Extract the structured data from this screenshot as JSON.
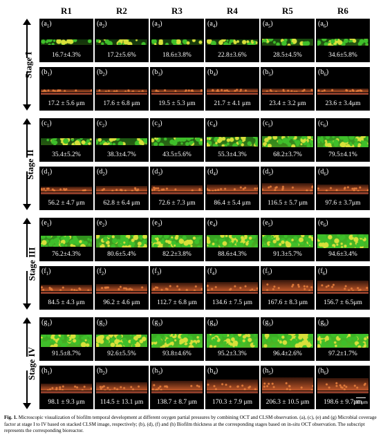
{
  "columns": [
    "R1",
    "R2",
    "R3",
    "R4",
    "R5",
    "R6"
  ],
  "stages": [
    {
      "label": "Stage I",
      "rows": [
        {
          "letter": "a",
          "kind": "clsm",
          "values": [
            "16.7±4.3%",
            "17.2±5.6%",
            "18.6±3.8%",
            "22.8±3.6%",
            "28.5±4.5%",
            "34.6±5.8%"
          ]
        },
        {
          "letter": "b",
          "kind": "oct",
          "values": [
            "17.2 ± 5.6 μm",
            "17.6 ± 6.8 μm",
            "19.5 ± 5.3 μm",
            "21.7 ± 4.1 μm",
            "23.4 ± 3.2 μm",
            "23.6 ± 3.4μm"
          ]
        }
      ]
    },
    {
      "label": "Stage II",
      "rows": [
        {
          "letter": "c",
          "kind": "clsm",
          "values": [
            "35.4±5.2%",
            "38.3±4.7%",
            "43.5±5.6%",
            "55.3±4.3%",
            "68.2±3.7%",
            "79.5±4.1%"
          ]
        },
        {
          "letter": "d",
          "kind": "oct",
          "values": [
            "56.2 ± 4.7 μm",
            "62.8 ± 6.4 μm",
            "72.6 ± 7.3 μm",
            "86.4 ± 5.4 μm",
            "116.5 ± 5.7 μm",
            "97.6 ± 3.7μm"
          ]
        }
      ]
    },
    {
      "label": "Stage III",
      "rows": [
        {
          "letter": "e",
          "kind": "clsm",
          "values": [
            "76.2±4.3%",
            "80.6±5.4%",
            "82.2±3.8%",
            "88.6±4.3%",
            "91.3±5.7%",
            "94.6±3.4%"
          ]
        },
        {
          "letter": "f",
          "kind": "oct",
          "values": [
            "84.5 ± 4.3 μm",
            "96.2 ± 4.6 μm",
            "112.7 ± 6.8 μm",
            "134.6 ± 7.5 μm",
            "167.6 ± 8.3 μm",
            "156.7 ± 6.5μm"
          ]
        }
      ]
    },
    {
      "label": "Stage IV",
      "rows": [
        {
          "letter": "g",
          "kind": "clsm",
          "values": [
            "91.5±8.7%",
            "92.6±5.5%",
            "93.8±4.6%",
            "95.2±3.3%",
            "96.4±2.6%",
            "97.2±1.7%"
          ]
        },
        {
          "letter": "h",
          "kind": "oct",
          "values": [
            "98.1 ± 9.3 μm",
            "114.5 ± 13.1 μm",
            "138.7 ± 8.7 μm",
            "170.3 ± 7.9 μm",
            "206.3 ± 10.5 μm",
            "198.6 ± 9.7μm"
          ]
        }
      ]
    }
  ],
  "scale_bar": "100 μm",
  "caption": {
    "label": "Fig. 1.",
    "text": "Microscopic visualization of biofilm temporal development at different oxygen partial pressures by combining OCT and CLSM observation. (a), (c), (e) and (g) Microbial coverage factor at stage I to IV based on stacked CLSM image, respectively; (b), (d), (f) and (h) Biofilm thickness at the corresponding stages based on in-situ OCT observation. The subscript represents the corresponding bioreactor."
  },
  "colors": {
    "clsm_green": "#3fbf2a",
    "clsm_yellow": "#d8e03a",
    "oct_orange": "#c0582a",
    "panel_bg": "#000000"
  }
}
